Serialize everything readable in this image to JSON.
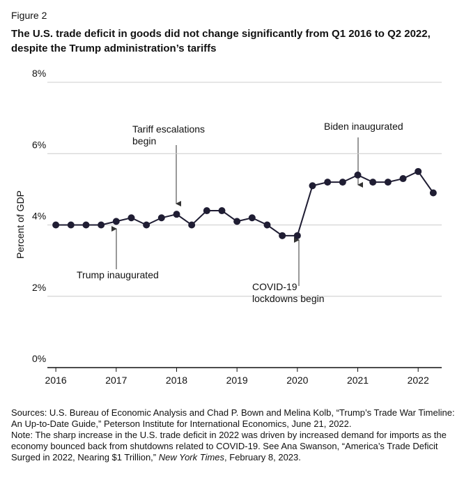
{
  "figure_label": "Figure 2",
  "chart_data": {
    "type": "line",
    "title": "The U.S. trade deficit in goods did not change significantly from Q1 2016 to Q2 2022, despite the Trump administration’s tariffs",
    "y_label": "Percent of GDP",
    "x": [
      2016,
      2016.25,
      2016.5,
      2016.75,
      2017,
      2017.25,
      2017.5,
      2017.75,
      2018,
      2018.25,
      2018.5,
      2018.75,
      2019,
      2019.25,
      2019.5,
      2019.75,
      2020,
      2020.25,
      2020.5,
      2020.75,
      2021,
      2021.25,
      2021.5,
      2021.75,
      2022,
      2022.25
    ],
    "series": [
      {
        "name": "Trade deficit in goods",
        "color": "#1f1d33",
        "values": [
          4.0,
          4.0,
          4.0,
          4.0,
          4.1,
          4.2,
          4.0,
          4.2,
          4.3,
          4.0,
          4.4,
          4.4,
          4.1,
          4.2,
          4.0,
          3.7,
          3.7,
          5.1,
          5.2,
          5.2,
          5.4,
          5.2,
          5.2,
          5.3,
          5.5,
          4.9
        ]
      }
    ],
    "xlim": [
      2015.86,
      2022.39
    ],
    "xticks": [
      2016,
      2017,
      2018,
      2019,
      2020,
      2021,
      2022
    ],
    "ylim": [
      0,
      8
    ],
    "yticks": [
      {
        "value": 0,
        "label": "0%"
      },
      {
        "value": 2,
        "label": "2%"
      },
      {
        "value": 4,
        "label": "4%"
      },
      {
        "value": 6,
        "label": "6%"
      },
      {
        "value": 8,
        "label": "8%"
      }
    ],
    "grid": true,
    "annotations": [
      {
        "text": [
          "Tariff escalations",
          "begin"
        ]
      },
      {
        "text": [
          "Biden inaugurated"
        ]
      },
      {
        "text": [
          "Trump inaugurated"
        ]
      },
      {
        "text": [
          "COVID-19",
          "lockdowns begin"
        ]
      }
    ]
  },
  "footer": {
    "sources": "Sources: U.S. Bureau of Economic Analysis and Chad P. Bown and Melina Kolb, “Trump’s Trade War Timeline: An Up-to-Date Guide,” Peterson Institute for International Economics, June 21, 2022.",
    "note_start": "Note: The sharp increase in the U.S. trade deficit in 2022 was driven by increased demand for imports as the economy bounced back from shutdowns related to COVID-19. See Ana Swanson, “America’s Trade Deficit Surged in 2022, Nearing $1 Trillion,” ",
    "note_italic": "New York Times",
    "note_end": ", February 8, 2023."
  }
}
